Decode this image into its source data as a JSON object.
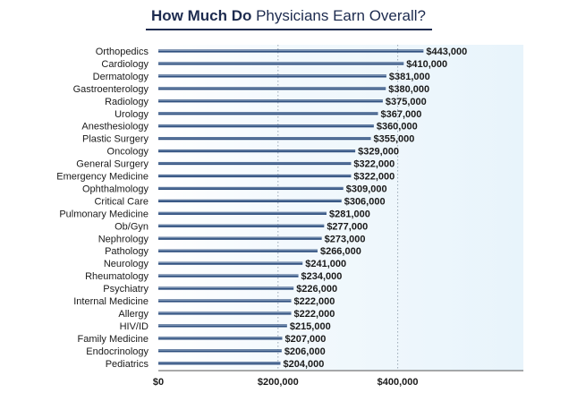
{
  "chart_data": {
    "type": "bar",
    "orientation": "horizontal",
    "title_bold": "How Much Do",
    "title_rest": " Physicians Earn Overall?",
    "categories": [
      "Orthopedics",
      "Cardiology",
      "Dermatology",
      "Gastroenterology",
      "Radiology",
      "Urology",
      "Anesthesiology",
      "Plastic Surgery",
      "Oncology",
      "General Surgery",
      "Emergency Medicine",
      "Ophthalmology",
      "Critical Care",
      "Pulmonary Medicine",
      "Ob/Gyn",
      "Nephrology",
      "Pathology",
      "Neurology",
      "Rheumatology",
      "Psychiatry",
      "Internal Medicine",
      "Allergy",
      "HIV/ID",
      "Family Medicine",
      "Endocrinology",
      "Pediatrics"
    ],
    "values": [
      443000,
      410000,
      381000,
      380000,
      375000,
      367000,
      360000,
      355000,
      329000,
      322000,
      322000,
      309000,
      306000,
      281000,
      277000,
      273000,
      266000,
      241000,
      234000,
      226000,
      222000,
      222000,
      215000,
      207000,
      206000,
      204000
    ],
    "value_labels": [
      "$443,000",
      "$410,000",
      "$381,000",
      "$380,000",
      "$375,000",
      "$367,000",
      "$360,000",
      "$355,000",
      "$329,000",
      "$322,000",
      "$322,000",
      "$309,000",
      "$306,000",
      "$281,000",
      "$277,000",
      "$273,000",
      "$266,000",
      "$241,000",
      "$234,000",
      "$226,000",
      "$222,000",
      "$222,000",
      "$215,000",
      "$207,000",
      "$206,000",
      "$204,000"
    ],
    "x_ticks": [
      0,
      200000,
      400000
    ],
    "x_tick_labels": [
      "$0",
      "$200,000",
      "$400,000"
    ],
    "xlim": [
      0,
      610000
    ],
    "grid": true,
    "colors": {
      "bar": "#2d4e7e",
      "bar_highlight": "#9fb3cc",
      "panel": "#eef7fc",
      "title": "#1d2b4f",
      "grid": "#9aa8b5"
    }
  }
}
